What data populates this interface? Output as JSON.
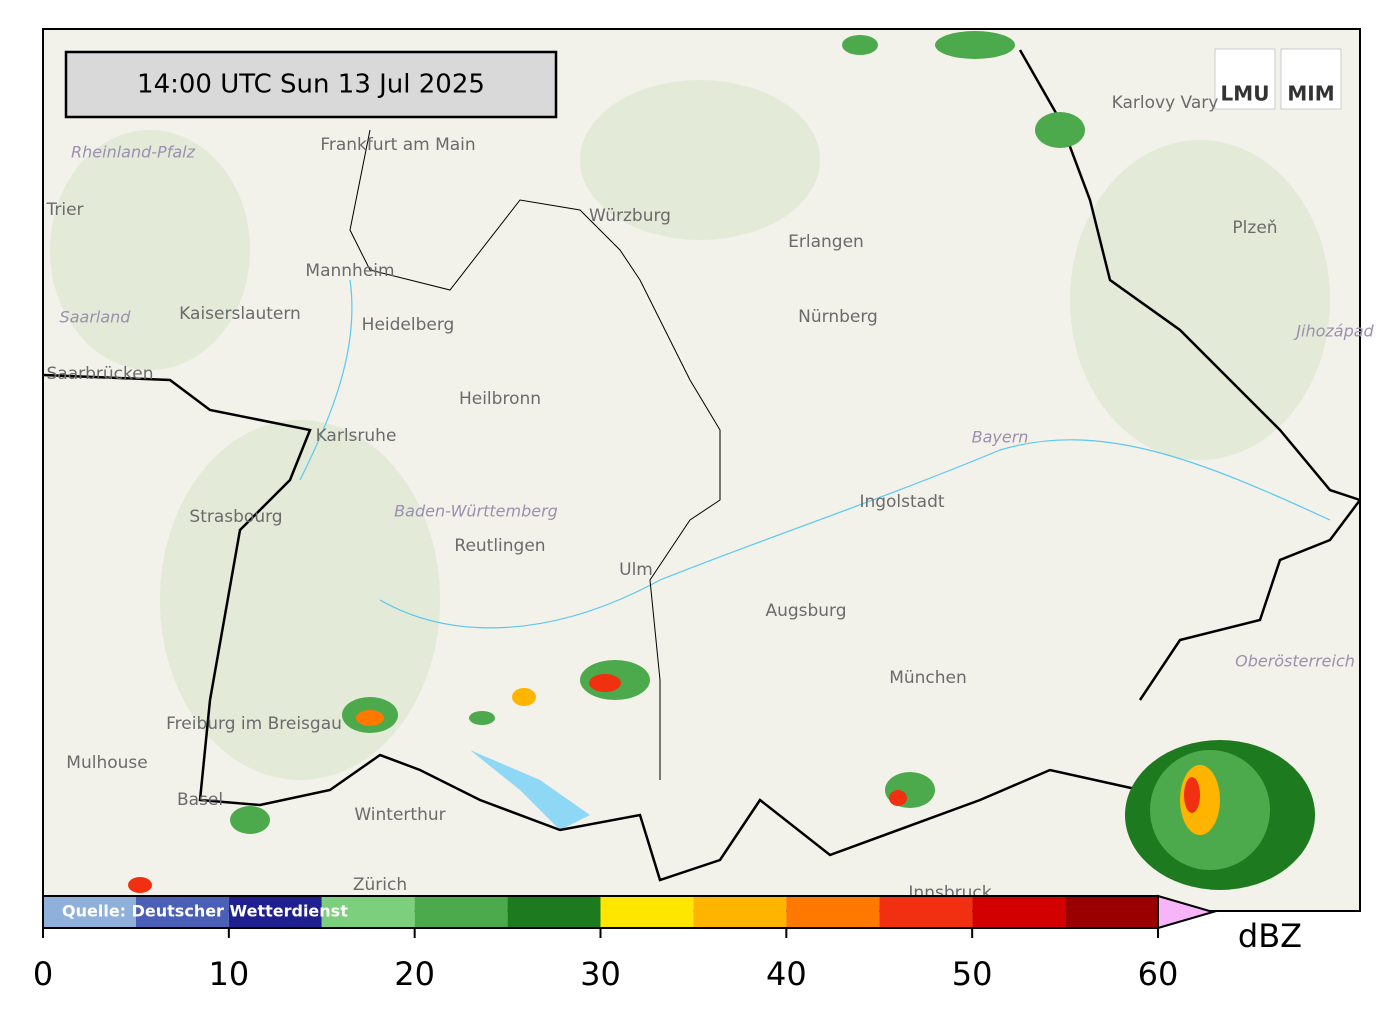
{
  "timestamp": "14:00 UTC  Sun 13 Jul 2025",
  "logo": {
    "left": "LMU",
    "right": "MIM"
  },
  "source": "Quelle: Deutscher Wetterdienst",
  "places": [
    "Frankfurt am Main",
    "Würzburg",
    "Erlangen",
    "Nürnberg",
    "Mannheim",
    "Kaiserslautern",
    "Heidelberg",
    "Saarland",
    "Rheinland-Pfalz",
    "Trier",
    "Saarbrücken",
    "Heilbronn",
    "Karlsruhe",
    "Strasbourg",
    "Baden-Württemberg",
    "Reutlingen",
    "Ulm",
    "Ingolstadt",
    "Bayern",
    "Augsburg",
    "München",
    "Freiburg im Breisgau",
    "Mulhouse",
    "Basel",
    "Winterthur",
    "Zürich",
    "Innsbruck",
    "Oberösterreich",
    "Karlovy Vary",
    "Plzeň",
    "Jihozápad"
  ],
  "colorbar": {
    "bounds": [
      0,
      5,
      10,
      15,
      20,
      25,
      30,
      35,
      40,
      45,
      50,
      55,
      60
    ],
    "colors": [
      "#8fb0da",
      "#4a5fb5",
      "#1f1f8f",
      "#7ccf7c",
      "#4caa4c",
      "#1e7a1e",
      "#ffe600",
      "#ffb400",
      "#ff7800",
      "#f03010",
      "#d20000",
      "#9a0000"
    ],
    "extend_color": "#f8b4f8",
    "ticks": [
      0,
      10,
      20,
      30,
      40,
      50,
      60
    ],
    "unit": "dBZ"
  }
}
